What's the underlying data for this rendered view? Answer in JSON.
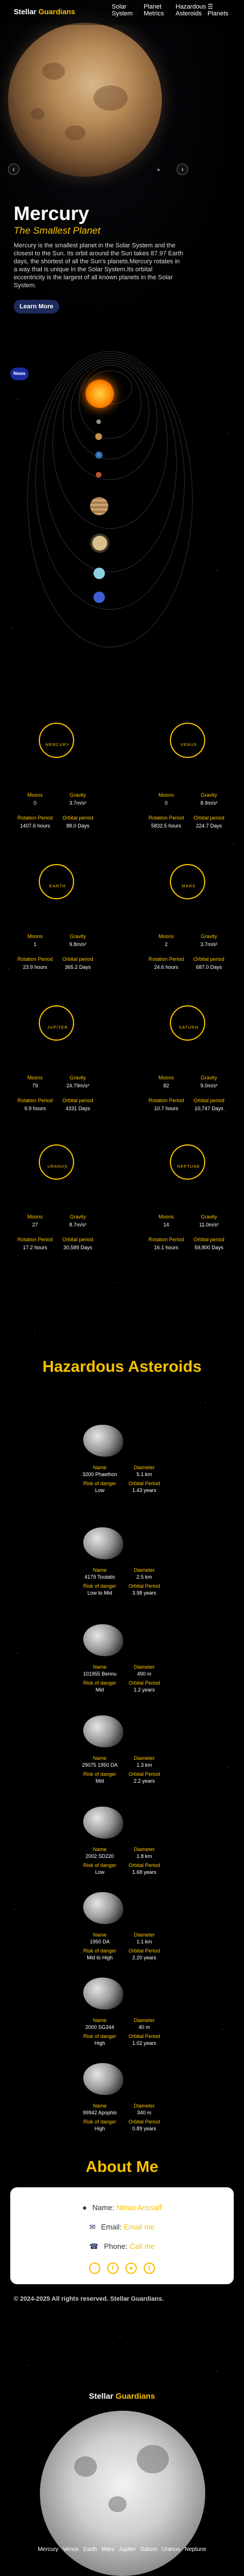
{
  "nav": {
    "brand_a": "Stellar",
    "brand_b": "Guardians",
    "links": [
      "Solar System",
      "Planet Metrics",
      "Hazardous Asteroids",
      "☰ Planets"
    ]
  },
  "hero": {
    "title": "Mercury",
    "subtitle": "The Smallest Planet",
    "description": "Mercury is the smallest planet in the Solar System and the closest to the Sun. Its orbit around the Sun takes 87.97 Earth days, the shortest of all the Sun's planets.Mercury rotates in a way that is unique in the Solar System.Its orbital eccentricity is the largest of all known planets in the Solar System.",
    "button": "Learn More",
    "prev": "‹",
    "next": "›"
  },
  "solar": {
    "badge": "News"
  },
  "metrics": [
    {
      "ring": "MERCURY",
      "a_lbl": "Moons",
      "a_val": "0",
      "b_lbl": "Gravity",
      "b_val": "3.7m/s²",
      "c_lbl": "Rotation Period",
      "c_val": "1407.6 hours",
      "d_lbl": "Orbital period",
      "d_val": "88.0 Days"
    },
    {
      "ring": "VENUS",
      "a_lbl": "Moons",
      "a_val": "0",
      "b_lbl": "Gravity",
      "b_val": "8.9m/s²",
      "c_lbl": "Rotation Period",
      "c_val": "5832.5 hours",
      "d_lbl": "Orbital period",
      "d_val": "224.7 Days"
    },
    {
      "ring": "EARTH",
      "a_lbl": "Moons",
      "a_val": "1",
      "b_lbl": "Gravity",
      "b_val": "9.8m/s²",
      "c_lbl": "Rotation Period",
      "c_val": "23.9 hours",
      "d_lbl": "Orbital period",
      "d_val": "365.2 Days"
    },
    {
      "ring": "MARS",
      "a_lbl": "Moons",
      "a_val": "2",
      "b_lbl": "Gravity",
      "b_val": "3.7m/s²",
      "c_lbl": "Rotation Period",
      "c_val": "24.6 hours",
      "d_lbl": "Orbital period",
      "d_val": "687.0 Days"
    },
    {
      "ring": "JUPITER",
      "a_lbl": "Moons",
      "a_val": "79",
      "b_lbl": "Gravity",
      "b_val": "24.79m/s²",
      "c_lbl": "Rotation Period",
      "c_val": "9.9 hours",
      "d_lbl": "Orbital period",
      "d_val": "4331 Days"
    },
    {
      "ring": "SATURN",
      "a_lbl": "Moons",
      "a_val": "82",
      "b_lbl": "Gravity",
      "b_val": "9.0m/s²",
      "c_lbl": "Rotation Period",
      "c_val": "10.7 hours",
      "d_lbl": "Orbital period",
      "d_val": "10,747 Days"
    },
    {
      "ring": "URANUS",
      "a_lbl": "Moons",
      "a_val": "27",
      "b_lbl": "Gravity",
      "b_val": "8.7m/s²",
      "c_lbl": "Rotation Period",
      "c_val": "17.2 hours",
      "d_lbl": "Orbital period",
      "d_val": "30,589 Days"
    },
    {
      "ring": "NEPTUNE",
      "a_lbl": "Moons",
      "a_val": "14",
      "b_lbl": "Gravity",
      "b_val": "11.0m/s²",
      "c_lbl": "Rotation Period",
      "c_val": "16.1 hours",
      "d_lbl": "Orbital period",
      "d_val": "59,800 Days"
    }
  ],
  "asteroids_title": "Hazardous Asteroids",
  "asteroids": [
    {
      "a_lbl": "Name",
      "a_val": "3200 Phaethon",
      "b_lbl": "Diameter",
      "b_val": "5.1 km",
      "c_lbl": "Risk of danger",
      "c_val": "Low",
      "d_lbl": "Orbital Period",
      "d_val": "1.43 years"
    },
    {
      "a_lbl": "Name",
      "a_val": "4179 Toutatis",
      "b_lbl": "Diameter",
      "b_val": "2.5 km",
      "c_lbl": "Risk of danger",
      "c_val": "Low to Mid",
      "d_lbl": "Orbital Period",
      "d_val": "3.98 years"
    },
    {
      "a_lbl": "Name",
      "a_val": "101955 Bennu",
      "b_lbl": "Diameter",
      "b_val": "490 m",
      "c_lbl": "Risk of danger",
      "c_val": "Mid",
      "d_lbl": "Orbital Period",
      "d_val": "1.2 years"
    },
    {
      "a_lbl": "Name",
      "a_val": "29075 1950 DA",
      "b_lbl": "Diameter",
      "b_val": "1.3 km",
      "c_lbl": "Risk of danger",
      "c_val": "Mid",
      "d_lbl": "Orbital Period",
      "d_val": "2.2 years"
    },
    {
      "a_lbl": "Name",
      "a_val": "2002 SD220",
      "b_lbl": "Diameter",
      "b_val": "1.8 km",
      "c_lbl": "Risk of danger",
      "c_val": "Low",
      "d_lbl": "Orbital Period",
      "d_val": "1.68 years"
    },
    {
      "a_lbl": "Name",
      "a_val": "1950 DA",
      "b_lbl": "Diameter",
      "b_val": "1.1 km",
      "c_lbl": "Risk of danger",
      "c_val": "Mid to High",
      "d_lbl": "Orbital Period",
      "d_val": "2.20 years"
    },
    {
      "a_lbl": "Name",
      "a_val": "2000 SG344",
      "b_lbl": "Diameter",
      "b_val": "40 m",
      "c_lbl": "Risk of danger",
      "c_val": "High",
      "d_lbl": "Orbital Period",
      "d_val": "1.02 years"
    },
    {
      "a_lbl": "Name",
      "a_val": "99942 Apophis",
      "b_lbl": "Diameter",
      "b_val": "340 m",
      "c_lbl": "Risk of danger",
      "c_val": "High",
      "d_lbl": "Orbital Period",
      "d_val": "0.89 years"
    }
  ],
  "about": {
    "title": "About Me",
    "name_label": "Name:",
    "name_value": "Nimat Anssalf",
    "email_label": "Email:",
    "email_value": "Email me",
    "phone_label": "Phone:",
    "phone_value": "Call me"
  },
  "footer": {
    "copyright": "© 2024-2025 All rights reserved. Stellar Guardians.",
    "brand_a": "Stellar",
    "brand_b": "Guardians",
    "links": [
      "Mercury",
      "Venus",
      "Earth",
      "Mars",
      "Jupiter",
      "Saturn",
      "Uranus",
      "Neptune"
    ]
  },
  "colors": {
    "accent": "#f7c200",
    "background": "#000000",
    "button": "#1d2a5a"
  }
}
